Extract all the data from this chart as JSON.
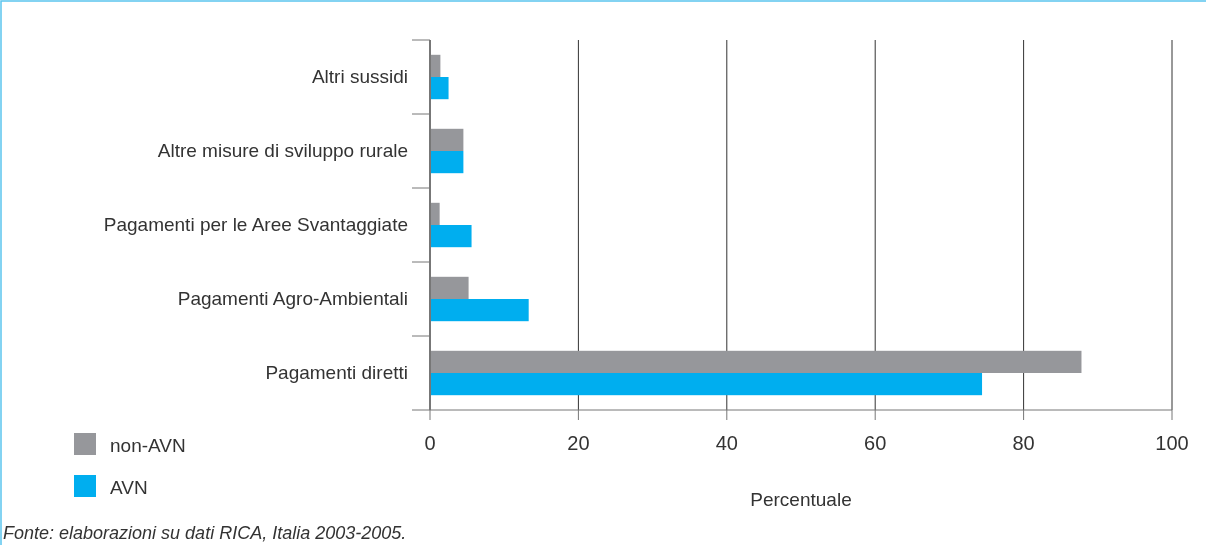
{
  "chart_data": {
    "type": "bar",
    "orientation": "horizontal",
    "categories": [
      "Altri sussidi",
      "Altre misure di sviluppo rurale",
      "Pagamenti per le Aree Svantaggiate",
      "Pagamenti Agro-Ambientali",
      "Pagamenti diretti"
    ],
    "series": [
      {
        "name": "non-AVN",
        "color": "#96979b",
        "values": [
          1.4,
          4.5,
          1.3,
          5.2,
          87.8
        ]
      },
      {
        "name": "AVN",
        "color": "#00aeef",
        "values": [
          2.5,
          4.5,
          5.6,
          13.3,
          74.4
        ]
      }
    ],
    "xlim": [
      0,
      100
    ],
    "xticks": [
      0,
      20,
      40,
      60,
      80,
      100
    ],
    "xlabel": "Percentuale",
    "grid": "x",
    "legend": "bottom left",
    "annotations": [
      "Fonte: elaborazioni su dati RICA, Italia 2003-2005."
    ]
  }
}
